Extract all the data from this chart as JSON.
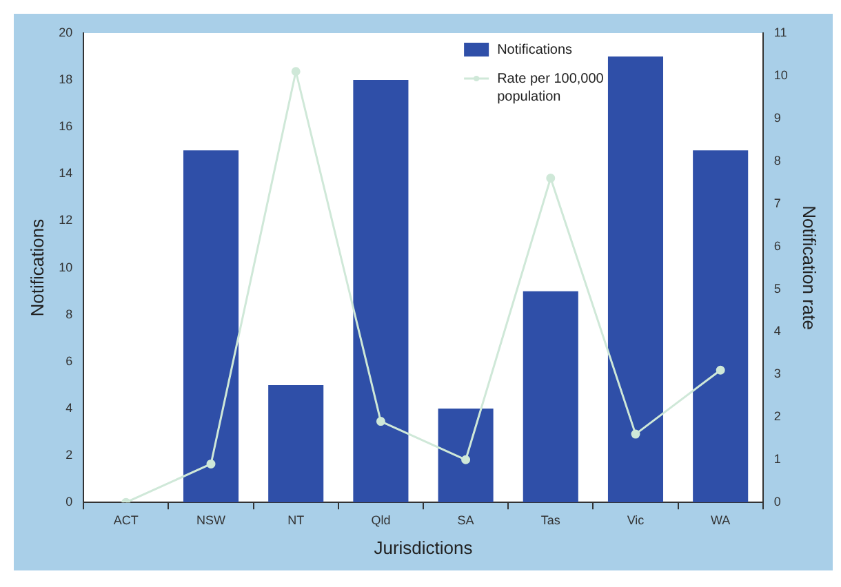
{
  "chart_data": {
    "type": "bar",
    "xlabel": "Jurisdictions",
    "ylabel": "Notifications",
    "y2label": "Notification rate",
    "categories": [
      "ACT",
      "NSW",
      "NT",
      "Qld",
      "SA",
      "Tas",
      "Vic",
      "WA"
    ],
    "series": [
      {
        "name": "Notifications",
        "color": "#2f4fa8",
        "values": [
          0,
          15,
          5,
          18,
          4,
          9,
          19,
          15
        ]
      },
      {
        "name": "Rate per 100,000 population",
        "type": "line",
        "axis": "y2",
        "color": "#cfe8d8",
        "values": [
          0,
          0.9,
          10.1,
          1.9,
          1.0,
          7.6,
          1.6,
          3.1
        ]
      }
    ],
    "ylim": [
      0,
      20
    ],
    "yticks": [
      0,
      2,
      4,
      6,
      8,
      10,
      12,
      14,
      16,
      18,
      20
    ],
    "y2lim": [
      0,
      11
    ],
    "y2ticks": [
      0,
      1,
      2,
      3,
      4,
      5,
      6,
      7,
      8,
      9,
      10,
      11
    ],
    "grid": false,
    "legend": "top",
    "marker": "circle"
  }
}
